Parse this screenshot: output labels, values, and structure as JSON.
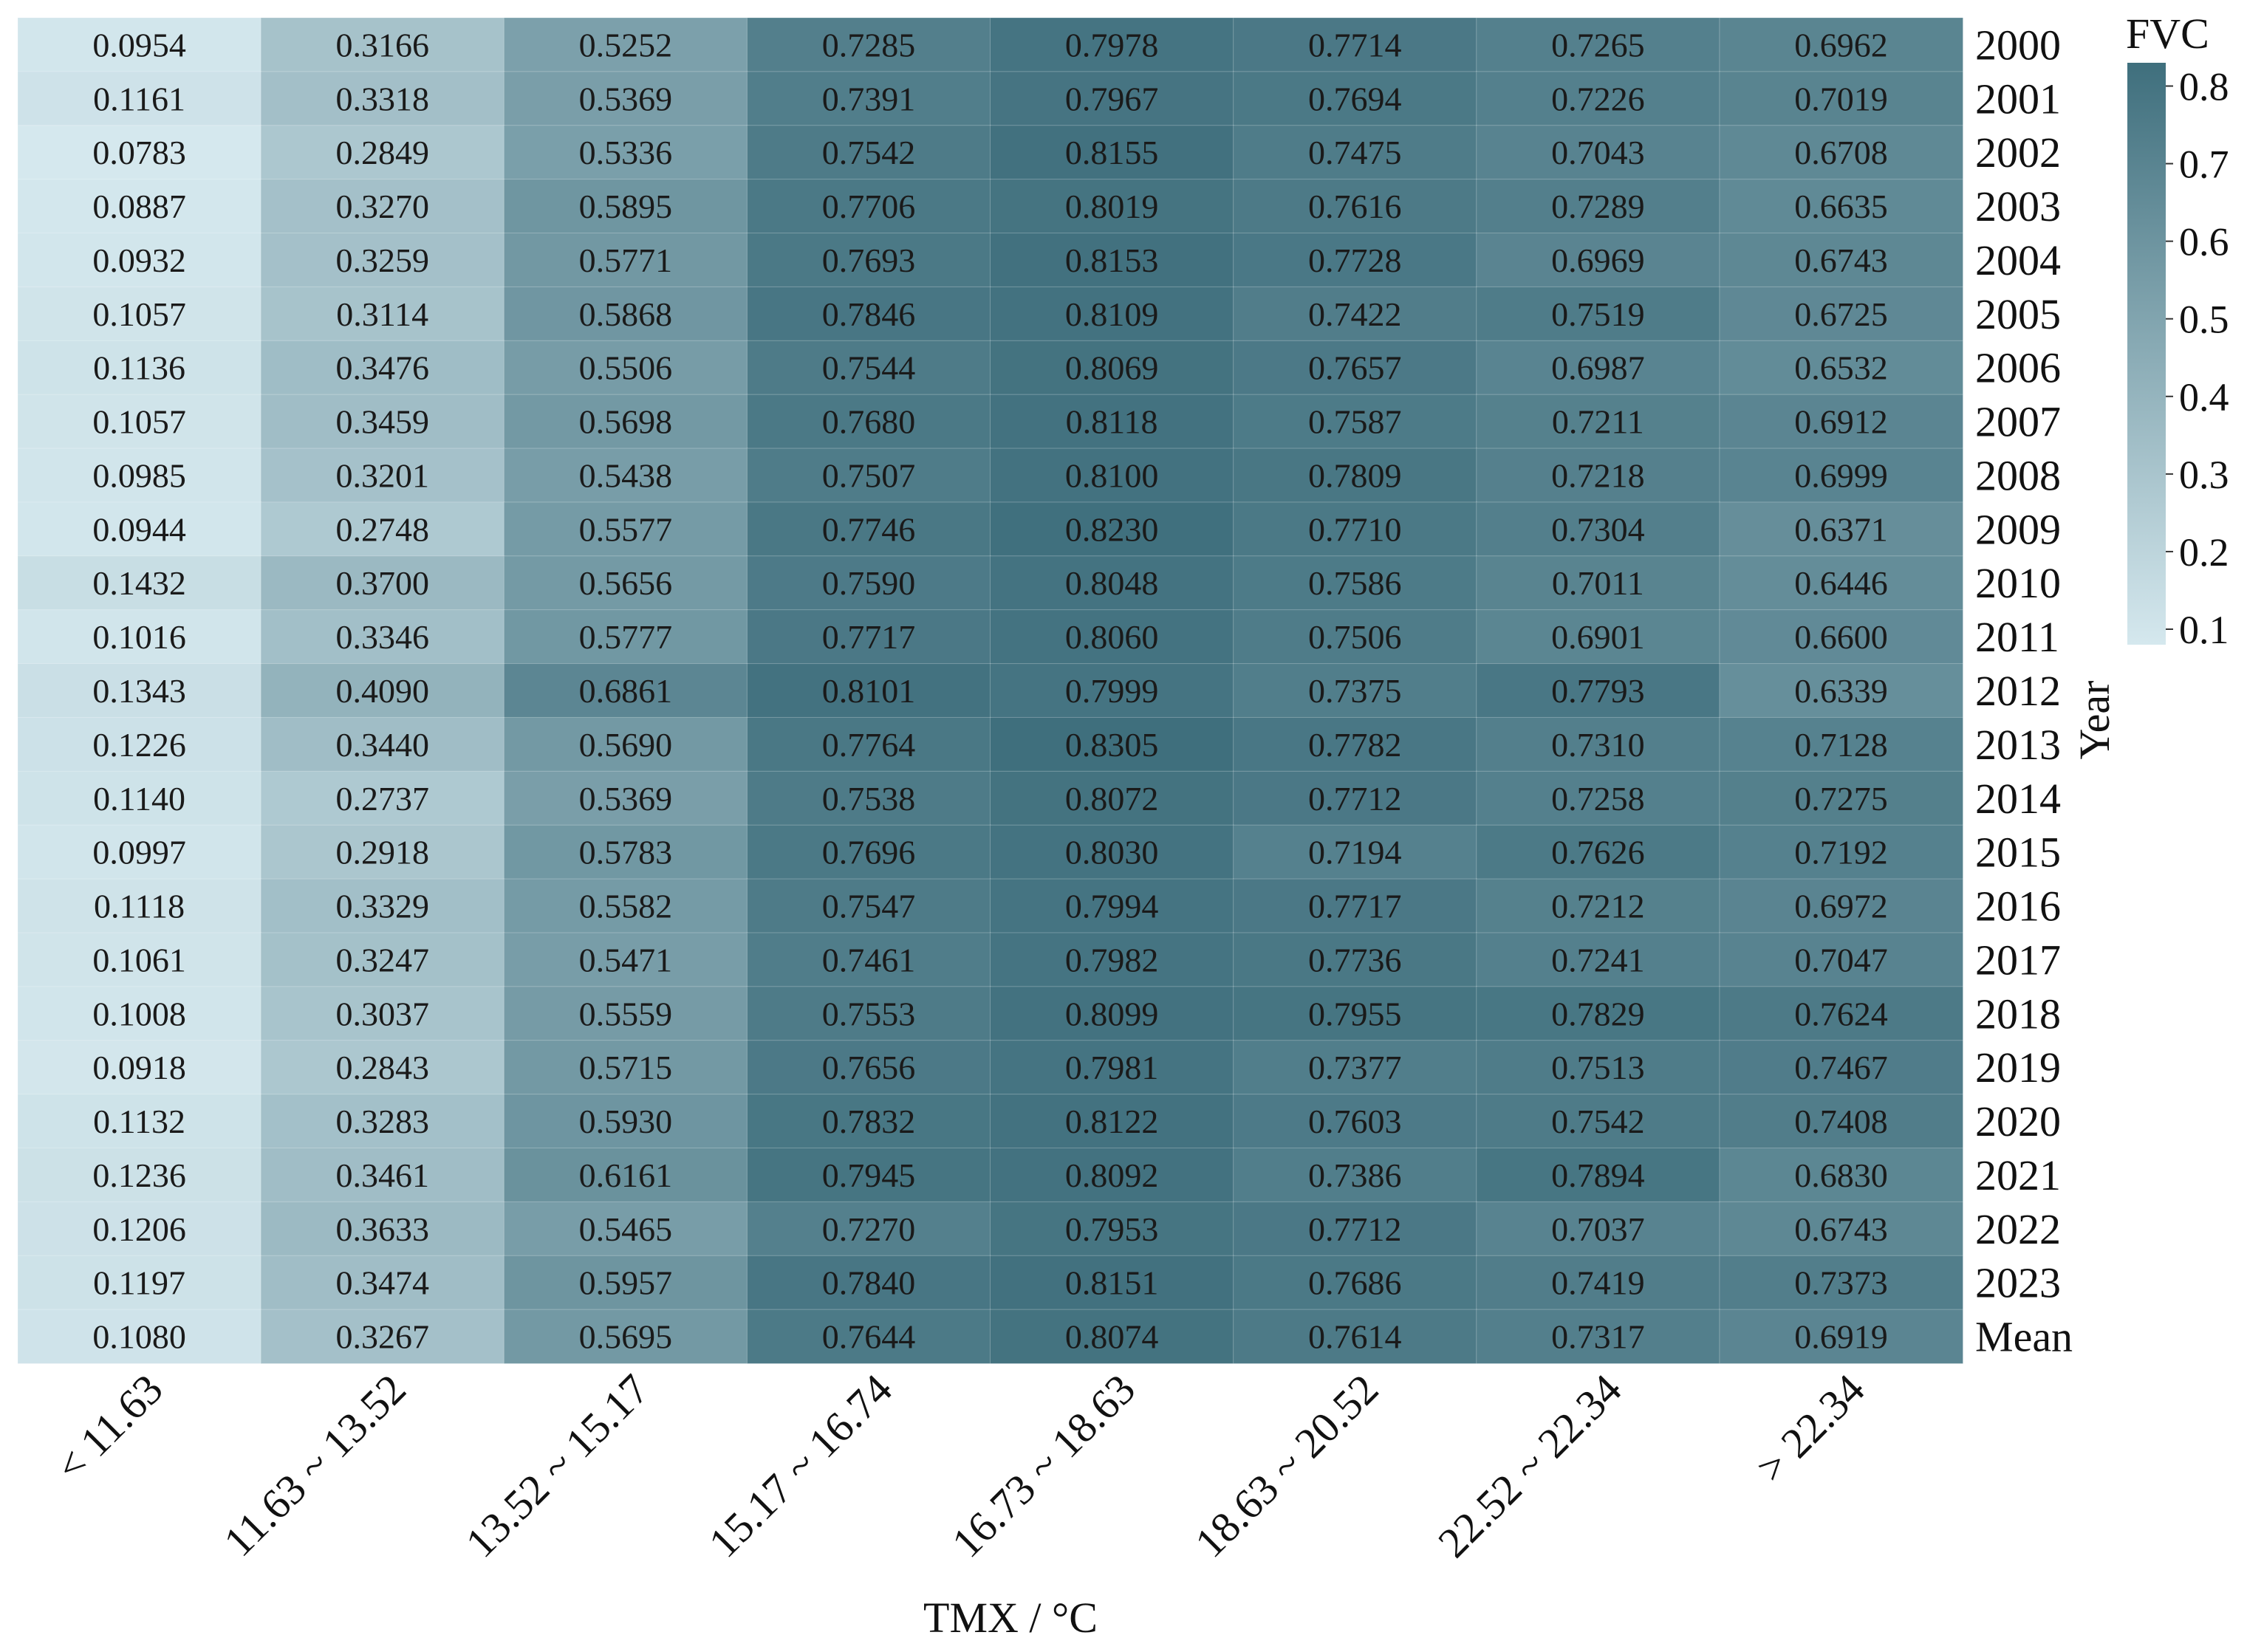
{
  "chart_data": {
    "type": "heatmap",
    "xlabel": "TMX / °C",
    "ylabel": "Year",
    "colorbar": {
      "label": "FVC",
      "ticks": [
        "0.8",
        "0.7",
        "0.6",
        "0.5",
        "0.4",
        "0.3",
        "0.2",
        "0.1"
      ],
      "range": [
        0.08,
        0.83
      ],
      "color_low": "#d5e8ee",
      "color_high": "#3f6f7d"
    },
    "columns": [
      "< 11.63",
      "11.63 ~ 13.52",
      "13.52 ~ 15.17",
      "15.17 ~ 16.74",
      "16.73 ~ 18.63",
      "18.63 ~ 20.52",
      "22.52 ~ 22.34",
      "> 22.34"
    ],
    "rows": [
      "2000",
      "2001",
      "2002",
      "2003",
      "2004",
      "2005",
      "2006",
      "2007",
      "2008",
      "2009",
      "2010",
      "2011",
      "2012",
      "2013",
      "2014",
      "2015",
      "2016",
      "2017",
      "2018",
      "2019",
      "2020",
      "2021",
      "2022",
      "2023",
      "Mean"
    ],
    "values": [
      [
        "0.0954",
        "0.3166",
        "0.5252",
        "0.7285",
        "0.7978",
        "0.7714",
        "0.7265",
        "0.6962"
      ],
      [
        "0.1161",
        "0.3318",
        "0.5369",
        "0.7391",
        "0.7967",
        "0.7694",
        "0.7226",
        "0.7019"
      ],
      [
        "0.0783",
        "0.2849",
        "0.5336",
        "0.7542",
        "0.8155",
        "0.7475",
        "0.7043",
        "0.6708"
      ],
      [
        "0.0887",
        "0.3270",
        "0.5895",
        "0.7706",
        "0.8019",
        "0.7616",
        "0.7289",
        "0.6635"
      ],
      [
        "0.0932",
        "0.3259",
        "0.5771",
        "0.7693",
        "0.8153",
        "0.7728",
        "0.6969",
        "0.6743"
      ],
      [
        "0.1057",
        "0.3114",
        "0.5868",
        "0.7846",
        "0.8109",
        "0.7422",
        "0.7519",
        "0.6725"
      ],
      [
        "0.1136",
        "0.3476",
        "0.5506",
        "0.7544",
        "0.8069",
        "0.7657",
        "0.6987",
        "0.6532"
      ],
      [
        "0.1057",
        "0.3459",
        "0.5698",
        "0.7680",
        "0.8118",
        "0.7587",
        "0.7211",
        "0.6912"
      ],
      [
        "0.0985",
        "0.3201",
        "0.5438",
        "0.7507",
        "0.8100",
        "0.7809",
        "0.7218",
        "0.6999"
      ],
      [
        "0.0944",
        "0.2748",
        "0.5577",
        "0.7746",
        "0.8230",
        "0.7710",
        "0.7304",
        "0.6371"
      ],
      [
        "0.1432",
        "0.3700",
        "0.5656",
        "0.7590",
        "0.8048",
        "0.7586",
        "0.7011",
        "0.6446"
      ],
      [
        "0.1016",
        "0.3346",
        "0.5777",
        "0.7717",
        "0.8060",
        "0.7506",
        "0.6901",
        "0.6600"
      ],
      [
        "0.1343",
        "0.4090",
        "0.6861",
        "0.8101",
        "0.7999",
        "0.7375",
        "0.7793",
        "0.6339"
      ],
      [
        "0.1226",
        "0.3440",
        "0.5690",
        "0.7764",
        "0.8305",
        "0.7782",
        "0.7310",
        "0.7128"
      ],
      [
        "0.1140",
        "0.2737",
        "0.5369",
        "0.7538",
        "0.8072",
        "0.7712",
        "0.7258",
        "0.7275"
      ],
      [
        "0.0997",
        "0.2918",
        "0.5783",
        "0.7696",
        "0.8030",
        "0.7194",
        "0.7626",
        "0.7192"
      ],
      [
        "0.1118",
        "0.3329",
        "0.5582",
        "0.7547",
        "0.7994",
        "0.7717",
        "0.7212",
        "0.6972"
      ],
      [
        "0.1061",
        "0.3247",
        "0.5471",
        "0.7461",
        "0.7982",
        "0.7736",
        "0.7241",
        "0.7047"
      ],
      [
        "0.1008",
        "0.3037",
        "0.5559",
        "0.7553",
        "0.8099",
        "0.7955",
        "0.7829",
        "0.7624"
      ],
      [
        "0.0918",
        "0.2843",
        "0.5715",
        "0.7656",
        "0.7981",
        "0.7377",
        "0.7513",
        "0.7467"
      ],
      [
        "0.1132",
        "0.3283",
        "0.5930",
        "0.7832",
        "0.8122",
        "0.7603",
        "0.7542",
        "0.7408"
      ],
      [
        "0.1236",
        "0.3461",
        "0.6161",
        "0.7945",
        "0.8092",
        "0.7386",
        "0.7894",
        "0.6830"
      ],
      [
        "0.1206",
        "0.3633",
        "0.5465",
        "0.7270",
        "0.7953",
        "0.7712",
        "0.7037",
        "0.6743"
      ],
      [
        "0.1197",
        "0.3474",
        "0.5957",
        "0.7840",
        "0.8151",
        "0.7686",
        "0.7419",
        "0.7373"
      ],
      [
        "0.1080",
        "0.3267",
        "0.5695",
        "0.7644",
        "0.8074",
        "0.7614",
        "0.7317",
        "0.6919"
      ]
    ]
  }
}
